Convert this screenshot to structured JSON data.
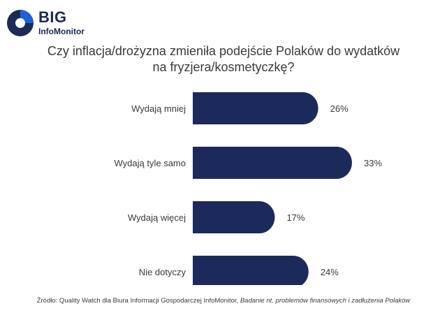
{
  "logo": {
    "big": "BIG",
    "sub": "InfoMonitor"
  },
  "title_lines": [
    "Czy inflacja/drożyzna zmieniła podejście Polaków do wydatków",
    "na fryzjera/kosmetyczkę?"
  ],
  "colors": {
    "bar": "#1c2a5b",
    "text": "#3a3a3a",
    "logo_dark": "#1c2a55",
    "logo_accent": "#1e63d6"
  },
  "chart_data": {
    "type": "bar",
    "orientation": "horizontal",
    "categories": [
      "Wydają mniej",
      "Wydają tyle samo",
      "Wydają więcej",
      "Nie dotyczy"
    ],
    "values": [
      26,
      33,
      17,
      24
    ],
    "value_labels": [
      "26%",
      "33%",
      "17%",
      "24%"
    ],
    "xlim": [
      0,
      33
    ],
    "grid": false,
    "legend": "none"
  },
  "source": {
    "prefix": "Źródło: Quality Watch dla Biura Informacji Gospodarczej InfoMonitor, ",
    "italic": "Badanie nt. problemów finansowych i zadłużenia Polaków"
  }
}
